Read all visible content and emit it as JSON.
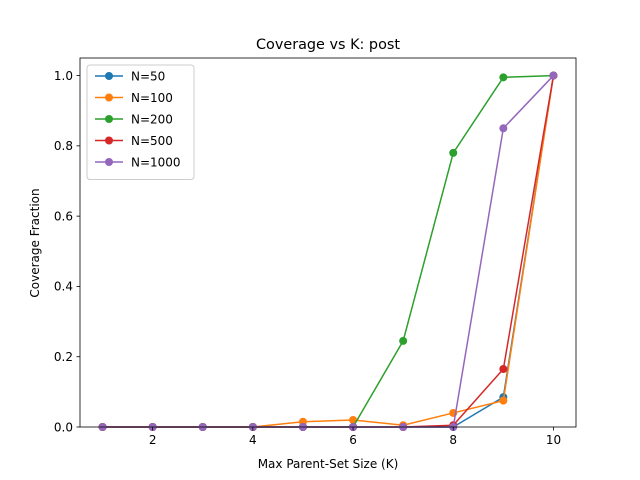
{
  "chart_data": {
    "type": "line",
    "title": "Coverage vs K: post",
    "xlabel": "Max Parent-Set Size (K)",
    "ylabel": "Coverage Fraction",
    "xlim": [
      0.55,
      10.45
    ],
    "ylim": [
      0,
      1.05
    ],
    "xticks": [
      2,
      4,
      6,
      8,
      10
    ],
    "xtick_labels": [
      "2",
      "4",
      "6",
      "8",
      "10"
    ],
    "yticks": [
      0,
      0.2,
      0.4,
      0.6,
      0.8,
      1.0
    ],
    "ytick_labels": [
      "0.0",
      "0.2",
      "0.4",
      "0.6",
      "0.8",
      "1.0"
    ],
    "grid": false,
    "legend_position": "top-left",
    "x": [
      1,
      2,
      3,
      4,
      5,
      6,
      7,
      8,
      9,
      10
    ],
    "series": [
      {
        "name": "N=50",
        "color": "#1f77b4",
        "values": [
          0,
          0,
          0,
          0,
          0,
          0,
          0,
          0,
          0.085,
          1.0
        ]
      },
      {
        "name": "N=100",
        "color": "#ff7f0e",
        "values": [
          0,
          0,
          0,
          0,
          0.015,
          0.02,
          0.005,
          0.04,
          0.075,
          1.0
        ]
      },
      {
        "name": "N=200",
        "color": "#2ca02c",
        "values": [
          0,
          0,
          0,
          0,
          0,
          0,
          0.245,
          0.78,
          0.995,
          1.0
        ]
      },
      {
        "name": "N=500",
        "color": "#d62728",
        "values": [
          0,
          0,
          0,
          0,
          0,
          0,
          0,
          0.005,
          0.165,
          1.0
        ]
      },
      {
        "name": "N=1000",
        "color": "#9467bd",
        "values": [
          0,
          0,
          0,
          0,
          0,
          0,
          0,
          0,
          0.85,
          1.0
        ]
      }
    ]
  }
}
